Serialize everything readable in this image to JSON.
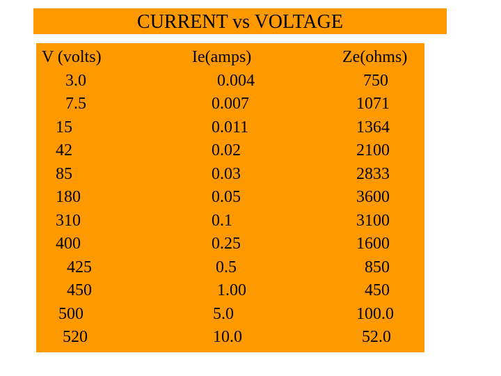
{
  "title": "CURRENT vs  VOLTAGE",
  "colors": {
    "panel": "#ff9900",
    "text": "#000000",
    "background": "#ffffff"
  },
  "table": {
    "headers": [
      "V (volts)",
      "Ie(amps)",
      "Ze(ohms)"
    ],
    "rows": [
      [
        "3.0",
        "0.004",
        "750"
      ],
      [
        "7.5",
        "0.007",
        "1071"
      ],
      [
        "15",
        "0.011",
        "1364"
      ],
      [
        "42",
        "0.02",
        "2100"
      ],
      [
        "85",
        "0.03",
        "2833"
      ],
      [
        "180",
        "0.05",
        "3600"
      ],
      [
        "310",
        "0.1",
        "3100"
      ],
      [
        "400",
        "0.25",
        "1600"
      ],
      [
        "425",
        "0.5",
        "850"
      ],
      [
        "450",
        "1.00",
        "450"
      ],
      [
        "500",
        "5.0",
        "100.0"
      ],
      [
        "520",
        "10.0",
        "52.0"
      ]
    ]
  }
}
